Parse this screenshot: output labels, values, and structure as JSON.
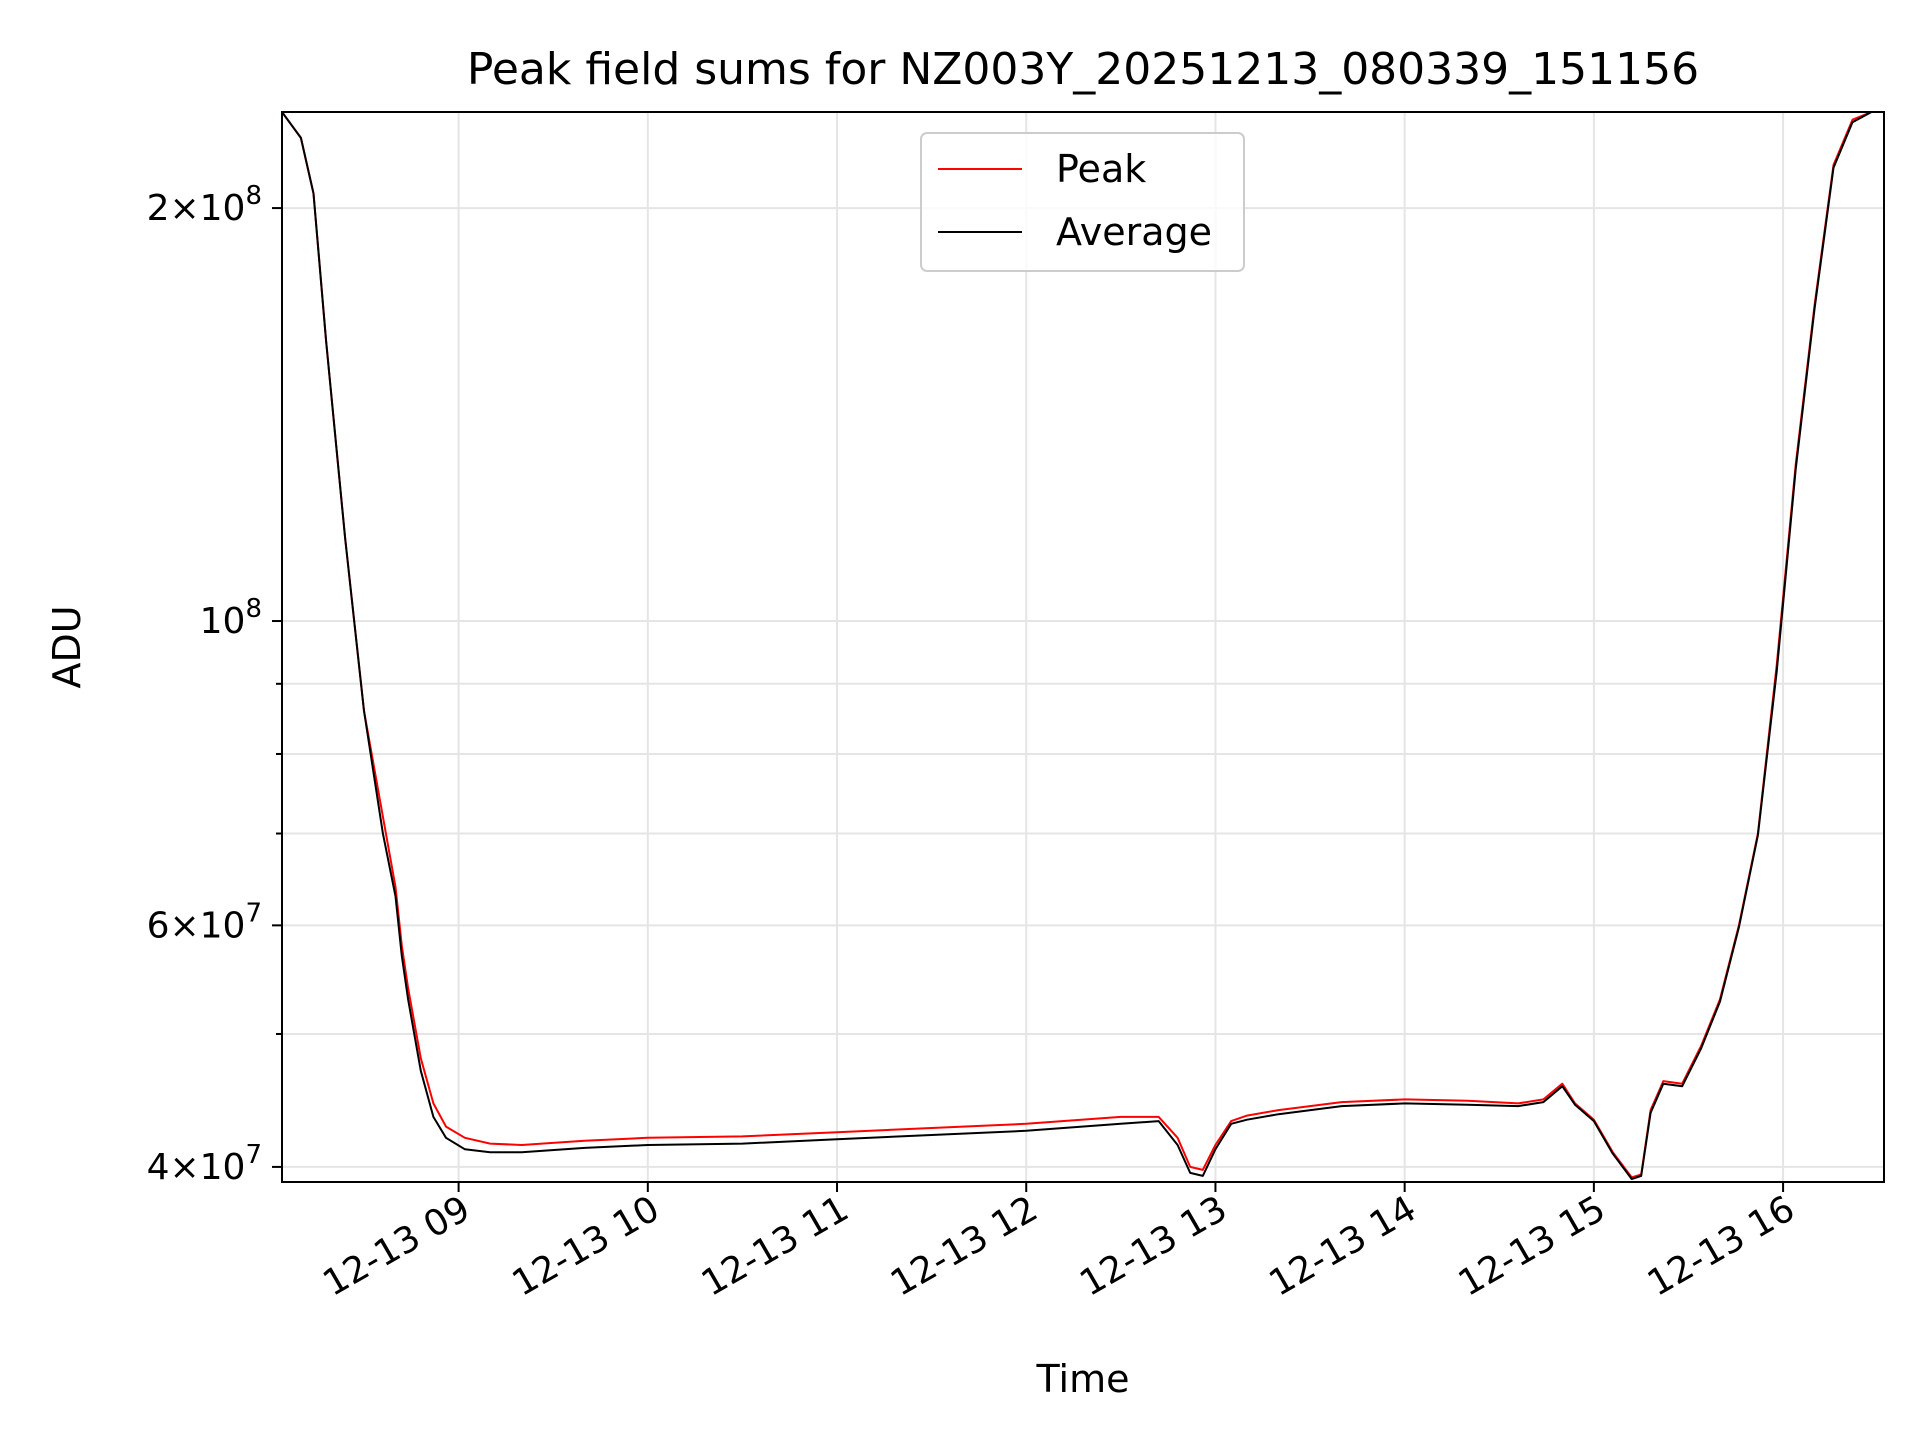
{
  "chart_data": {
    "type": "line",
    "title": "Peak field sums for NZ003Y_20251213_080339_151156",
    "xlabel": "Time",
    "ylabel": "ADU",
    "yscale": "log",
    "xlim": [
      "2025-12-13 08:04",
      "2025-12-13 16:32"
    ],
    "ylim": [
      39000000,
      235000000
    ],
    "grid": true,
    "legend_position": "top-center",
    "x_ticks": [
      {
        "time": "2025-12-13 09:00",
        "label": "12-13 09"
      },
      {
        "time": "2025-12-13 10:00",
        "label": "12-13 10"
      },
      {
        "time": "2025-12-13 11:00",
        "label": "12-13 11"
      },
      {
        "time": "2025-12-13 12:00",
        "label": "12-13 12"
      },
      {
        "time": "2025-12-13 13:00",
        "label": "12-13 13"
      },
      {
        "time": "2025-12-13 14:00",
        "label": "12-13 14"
      },
      {
        "time": "2025-12-13 15:00",
        "label": "12-13 15"
      },
      {
        "time": "2025-12-13 16:00",
        "label": "12-13 16"
      }
    ],
    "y_major_ticks": [
      {
        "value": 40000000,
        "base": "4",
        "exp": "7"
      },
      {
        "value": 60000000,
        "base": "6",
        "exp": "7"
      },
      {
        "value": 100000000,
        "base": "",
        "exp": "8"
      },
      {
        "value": 200000000,
        "base": "2",
        "exp": "8"
      }
    ],
    "y_minor_ticks": [
      50000000,
      70000000,
      80000000,
      90000000
    ],
    "series": [
      {
        "name": "Peak",
        "color": "#ff0000",
        "x": [
          "2025-12-13 08:04",
          "2025-12-13 08:10",
          "2025-12-13 08:14",
          "2025-12-13 08:18",
          "2025-12-13 08:24",
          "2025-12-13 08:30",
          "2025-12-13 08:36",
          "2025-12-13 08:40",
          "2025-12-13 08:42",
          "2025-12-13 08:44",
          "2025-12-13 08:48",
          "2025-12-13 08:52",
          "2025-12-13 08:56",
          "2025-12-13 09:02",
          "2025-12-13 09:10",
          "2025-12-13 09:20",
          "2025-12-13 09:40",
          "2025-12-13 10:00",
          "2025-12-13 10:30",
          "2025-12-13 11:00",
          "2025-12-13 11:30",
          "2025-12-13 12:00",
          "2025-12-13 12:30",
          "2025-12-13 12:42",
          "2025-12-13 12:48",
          "2025-12-13 12:52",
          "2025-12-13 12:56",
          "2025-12-13 13:00",
          "2025-12-13 13:05",
          "2025-12-13 13:10",
          "2025-12-13 13:20",
          "2025-12-13 13:40",
          "2025-12-13 14:00",
          "2025-12-13 14:20",
          "2025-12-13 14:36",
          "2025-12-13 14:44",
          "2025-12-13 14:50",
          "2025-12-13 14:54",
          "2025-12-13 15:00",
          "2025-12-13 15:06",
          "2025-12-13 15:12",
          "2025-12-13 15:15",
          "2025-12-13 15:18",
          "2025-12-13 15:22",
          "2025-12-13 15:28",
          "2025-12-13 15:34",
          "2025-12-13 15:40",
          "2025-12-13 15:46",
          "2025-12-13 15:52",
          "2025-12-13 15:58",
          "2025-12-13 16:04",
          "2025-12-13 16:10",
          "2025-12-13 16:16",
          "2025-12-13 16:22",
          "2025-12-13 16:28"
        ],
        "y": [
          235000000,
          225000000,
          205000000,
          160000000,
          115000000,
          86000000,
          72000000,
          64000000,
          58000000,
          54000000,
          48000000,
          44500000,
          42800000,
          42000000,
          41600000,
          41500000,
          41800000,
          42000000,
          42100000,
          42400000,
          42700000,
          43000000,
          43500000,
          43500000,
          42000000,
          40000000,
          39800000,
          41500000,
          43200000,
          43600000,
          44000000,
          44600000,
          44800000,
          44700000,
          44500000,
          44800000,
          46000000,
          44500000,
          43300000,
          41000000,
          39300000,
          39500000,
          44000000,
          46200000,
          46000000,
          49000000,
          53000000,
          60000000,
          70000000,
          93000000,
          130000000,
          170000000,
          215000000,
          232000000,
          235000000
        ]
      },
      {
        "name": "Average",
        "color": "#000000",
        "x": [
          "2025-12-13 08:04",
          "2025-12-13 08:10",
          "2025-12-13 08:14",
          "2025-12-13 08:18",
          "2025-12-13 08:24",
          "2025-12-13 08:30",
          "2025-12-13 08:36",
          "2025-12-13 08:40",
          "2025-12-13 08:42",
          "2025-12-13 08:44",
          "2025-12-13 08:48",
          "2025-12-13 08:52",
          "2025-12-13 08:56",
          "2025-12-13 09:02",
          "2025-12-13 09:10",
          "2025-12-13 09:20",
          "2025-12-13 09:40",
          "2025-12-13 10:00",
          "2025-12-13 10:30",
          "2025-12-13 11:00",
          "2025-12-13 11:30",
          "2025-12-13 12:00",
          "2025-12-13 12:30",
          "2025-12-13 12:42",
          "2025-12-13 12:48",
          "2025-12-13 12:52",
          "2025-12-13 12:56",
          "2025-12-13 13:00",
          "2025-12-13 13:05",
          "2025-12-13 13:10",
          "2025-12-13 13:20",
          "2025-12-13 13:40",
          "2025-12-13 14:00",
          "2025-12-13 14:20",
          "2025-12-13 14:36",
          "2025-12-13 14:44",
          "2025-12-13 14:50",
          "2025-12-13 14:54",
          "2025-12-13 15:00",
          "2025-12-13 15:06",
          "2025-12-13 15:12",
          "2025-12-13 15:15",
          "2025-12-13 15:18",
          "2025-12-13 15:22",
          "2025-12-13 15:28",
          "2025-12-13 15:34",
          "2025-12-13 15:40",
          "2025-12-13 15:46",
          "2025-12-13 15:52",
          "2025-12-13 15:58",
          "2025-12-13 16:04",
          "2025-12-13 16:10",
          "2025-12-13 16:16",
          "2025-12-13 16:22",
          "2025-12-13 16:28"
        ],
        "y": [
          235000000,
          225000000,
          205000000,
          160000000,
          115000000,
          86000000,
          70000000,
          63000000,
          57000000,
          53000000,
          47000000,
          43500000,
          42000000,
          41200000,
          41000000,
          41000000,
          41300000,
          41500000,
          41600000,
          41900000,
          42200000,
          42500000,
          43000000,
          43200000,
          41500000,
          39600000,
          39400000,
          41200000,
          43000000,
          43300000,
          43700000,
          44300000,
          44500000,
          44400000,
          44300000,
          44600000,
          45800000,
          44400000,
          43200000,
          40900000,
          39200000,
          39400000,
          43800000,
          46000000,
          45800000,
          48800000,
          52800000,
          59800000,
          69800000,
          92000000,
          129000000,
          169000000,
          214000000,
          231000000,
          235000000
        ]
      }
    ]
  }
}
